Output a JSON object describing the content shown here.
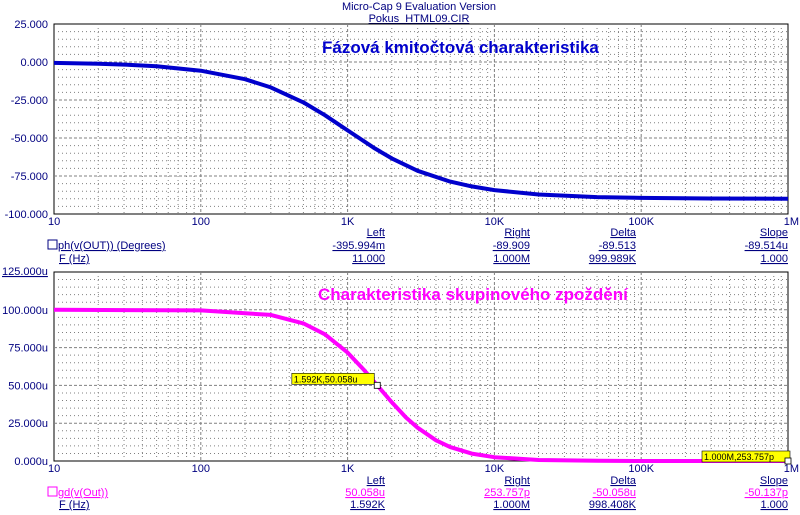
{
  "header": {
    "title": "Micro-Cap 9 Evaluation Version",
    "filename": "Pokus_HTML09.CIR"
  },
  "colors": {
    "text": "#000080",
    "phase_curve": "#0000cc",
    "phase_title": "#0000cc",
    "delay_curve": "#ff00ff",
    "delay_title": "#ff00ff",
    "grid": "#808080",
    "marker_fill": "#ffff00"
  },
  "x_ticks": [
    "10",
    "100",
    "1K",
    "10K",
    "100K",
    "1M"
  ],
  "chart_data": [
    {
      "type": "line",
      "title": "Fázová kmitočtová charakteristika",
      "x_scale": "log",
      "xlim": [
        10,
        1000000
      ],
      "ylim": [
        -100,
        25
      ],
      "ytick_values": [
        25,
        0,
        -25,
        -50,
        -75,
        -100
      ],
      "ytick_labels": [
        "25.000",
        "0.000",
        "-25.000",
        "-50.000",
        "-75.000",
        "-100.000"
      ],
      "grid": true,
      "series": [
        {
          "name": "ph(v(OUT)) (Degrees)",
          "x": [
            10,
            20,
            30,
            50,
            100,
            200,
            300,
            500,
            700,
            1000,
            1500,
            2000,
            3000,
            5000,
            7000,
            10000,
            20000,
            50000,
            100000,
            300000,
            1000000
          ],
          "y": [
            -0.57,
            -1.15,
            -1.72,
            -2.86,
            -5.71,
            -11.31,
            -16.7,
            -26.57,
            -34.99,
            -45.0,
            -56.31,
            -63.43,
            -71.57,
            -78.69,
            -81.87,
            -84.29,
            -87.14,
            -88.85,
            -89.43,
            -89.81,
            -89.94
          ]
        }
      ],
      "cursor_table": {
        "headers": [
          "Left",
          "Right",
          "Delta",
          "Slope"
        ],
        "rows": [
          {
            "label": "ph(v(OUT)) (Degrees)",
            "values": [
              "-395.994m",
              "-89.909",
              "-89.513",
              "-89.514u"
            ]
          },
          {
            "label": "F (Hz)",
            "values": [
              "11.000",
              "1.000M",
              "999.989K",
              "1.000"
            ]
          }
        ]
      }
    },
    {
      "type": "line",
      "title": "Charakteristika skupinového zpoždění",
      "x_scale": "log",
      "xlim": [
        10,
        1000000
      ],
      "ylim": [
        0,
        125
      ],
      "top_label": "125.000u",
      "ytick_values": [
        125,
        100,
        75,
        50,
        25,
        0
      ],
      "ytick_labels": [
        "125.000u",
        "100.000u",
        "75.000u",
        "50.000u",
        "25.000u",
        "0.000u"
      ],
      "grid": true,
      "series": [
        {
          "name": "gd(v(Out))",
          "x": [
            10,
            100,
            300,
            500,
            700,
            1000,
            1300,
            1592,
            2000,
            2500,
            3000,
            4000,
            5000,
            7000,
            10000,
            20000,
            50000,
            100000,
            1000000
          ],
          "y": [
            100.0,
            99.6,
            96.6,
            91.0,
            83.8,
            71.7,
            60.0,
            50.06,
            38.8,
            28.8,
            22.0,
            13.7,
            9.2,
            4.9,
            2.5,
            0.63,
            0.1,
            0.025,
            0.0003
          ]
        }
      ],
      "markers": [
        {
          "label": "1.592K,50.058u",
          "x": 1592,
          "y": 50.058
        },
        {
          "label": "1.000M,253.757p",
          "x": 1000000,
          "y": 0.0002538
        }
      ],
      "cursor_table": {
        "headers": [
          "Left",
          "Right",
          "Delta",
          "Slope"
        ],
        "rows": [
          {
            "label": "gd(v(Out))",
            "values": [
              "50.058u",
              "253.757p",
              "-50.058u",
              "-50.137p"
            ]
          },
          {
            "label": "F (Hz)",
            "values": [
              "1.592K",
              "1.000M",
              "998.408K",
              "1.000"
            ]
          }
        ]
      }
    }
  ]
}
